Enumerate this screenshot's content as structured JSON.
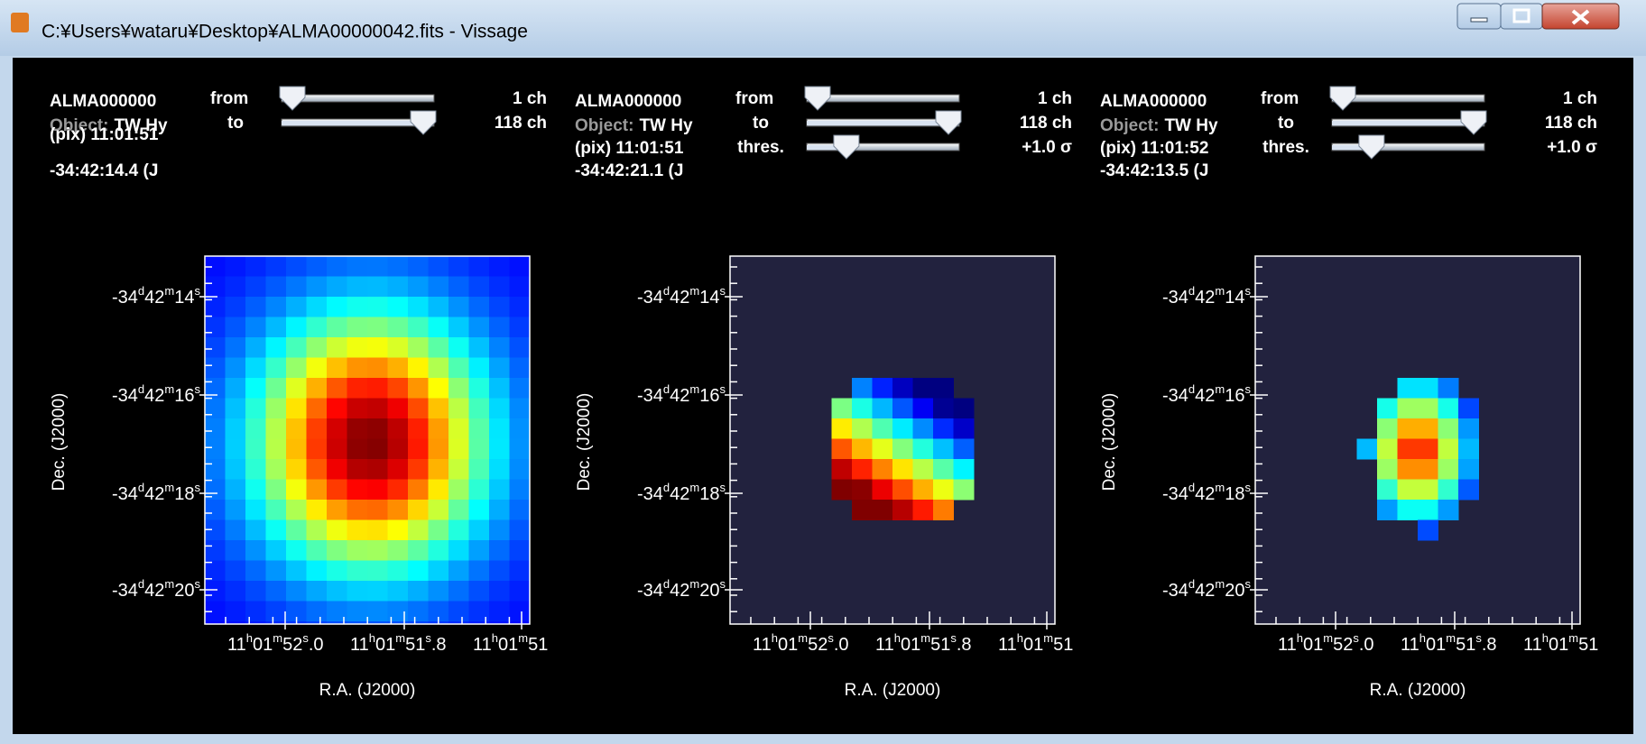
{
  "window": {
    "title": "C:¥Users¥wataru¥Desktop¥ALMA00000042.fits - Vissage"
  },
  "panels": [
    {
      "name": "ALMA000000",
      "object_label": "Object:",
      "object": "TW Hy",
      "pix": "(pix) 11:01:51",
      "dec": "-34:42:14.4 (J",
      "sliders": [
        {
          "label": "from",
          "value": "1 ch"
        },
        {
          "label": "to",
          "value": "118 ch"
        }
      ],
      "y_axis_label": "Dec. (J2000)",
      "x_axis_label": "R.A. (J2000)",
      "yticks": [
        [
          "-34",
          "d",
          "42",
          "m",
          "14",
          "s"
        ],
        [
          "-34",
          "d",
          "42",
          "m",
          "16",
          "s"
        ],
        [
          "-34",
          "d",
          "42",
          "m",
          "18",
          "s"
        ],
        [
          "-34",
          "d",
          "42",
          "m",
          "20",
          "s"
        ]
      ],
      "xticks": [
        [
          "11",
          "h",
          "01",
          "m",
          "52",
          "s",
          ".0"
        ],
        [
          "11",
          "h",
          "01",
          "m",
          "51",
          "s",
          ".8"
        ],
        [
          "11",
          "h",
          "01",
          "m",
          "51"
        ]
      ]
    },
    {
      "name": "ALMA000000",
      "object_label": "Object:",
      "object": "TW Hy",
      "pix": "(pix) 11:01:51",
      "dec": "-34:42:21.1 (J",
      "sliders": [
        {
          "label": "from",
          "value": "1 ch"
        },
        {
          "label": "to",
          "value": "118 ch"
        },
        {
          "label": "thres.",
          "value": "+1.0 σ"
        }
      ],
      "y_axis_label": "Dec. (J2000)",
      "x_axis_label": "R.A. (J2000)",
      "yticks": [
        [
          "-34",
          "d",
          "42",
          "m",
          "14",
          "s"
        ],
        [
          "-34",
          "d",
          "42",
          "m",
          "16",
          "s"
        ],
        [
          "-34",
          "d",
          "42",
          "m",
          "18",
          "s"
        ],
        [
          "-34",
          "d",
          "42",
          "m",
          "20",
          "s"
        ]
      ],
      "xticks": [
        [
          "11",
          "h",
          "01",
          "m",
          "52",
          "s",
          ".0"
        ],
        [
          "11",
          "h",
          "01",
          "m",
          "51",
          "s",
          ".8"
        ],
        [
          "11",
          "h",
          "01",
          "m",
          "51"
        ]
      ]
    },
    {
      "name": "ALMA000000",
      "object_label": "Object:",
      "object": "TW Hy",
      "pix": "(pix) 11:01:52",
      "dec": "-34:42:13.5 (J",
      "sliders": [
        {
          "label": "from",
          "value": "1 ch"
        },
        {
          "label": "to",
          "value": "118 ch"
        },
        {
          "label": "thres.",
          "value": "+1.0 σ"
        }
      ],
      "y_axis_label": "Dec. (J2000)",
      "x_axis_label": "R.A. (J2000)",
      "yticks": [
        [
          "-34",
          "d",
          "42",
          "m",
          "14",
          "s"
        ],
        [
          "-34",
          "d",
          "42",
          "m",
          "16",
          "s"
        ],
        [
          "-34",
          "d",
          "42",
          "m",
          "18",
          "s"
        ],
        [
          "-34",
          "d",
          "42",
          "m",
          "20",
          "s"
        ]
      ],
      "xticks": [
        [
          "11",
          "h",
          "01",
          "m",
          "52",
          "s",
          ".0"
        ],
        [
          "11",
          "h",
          "01",
          "m",
          "51",
          "s",
          ".8"
        ],
        [
          "11",
          "h",
          "01",
          "m",
          "51"
        ]
      ]
    }
  ]
}
